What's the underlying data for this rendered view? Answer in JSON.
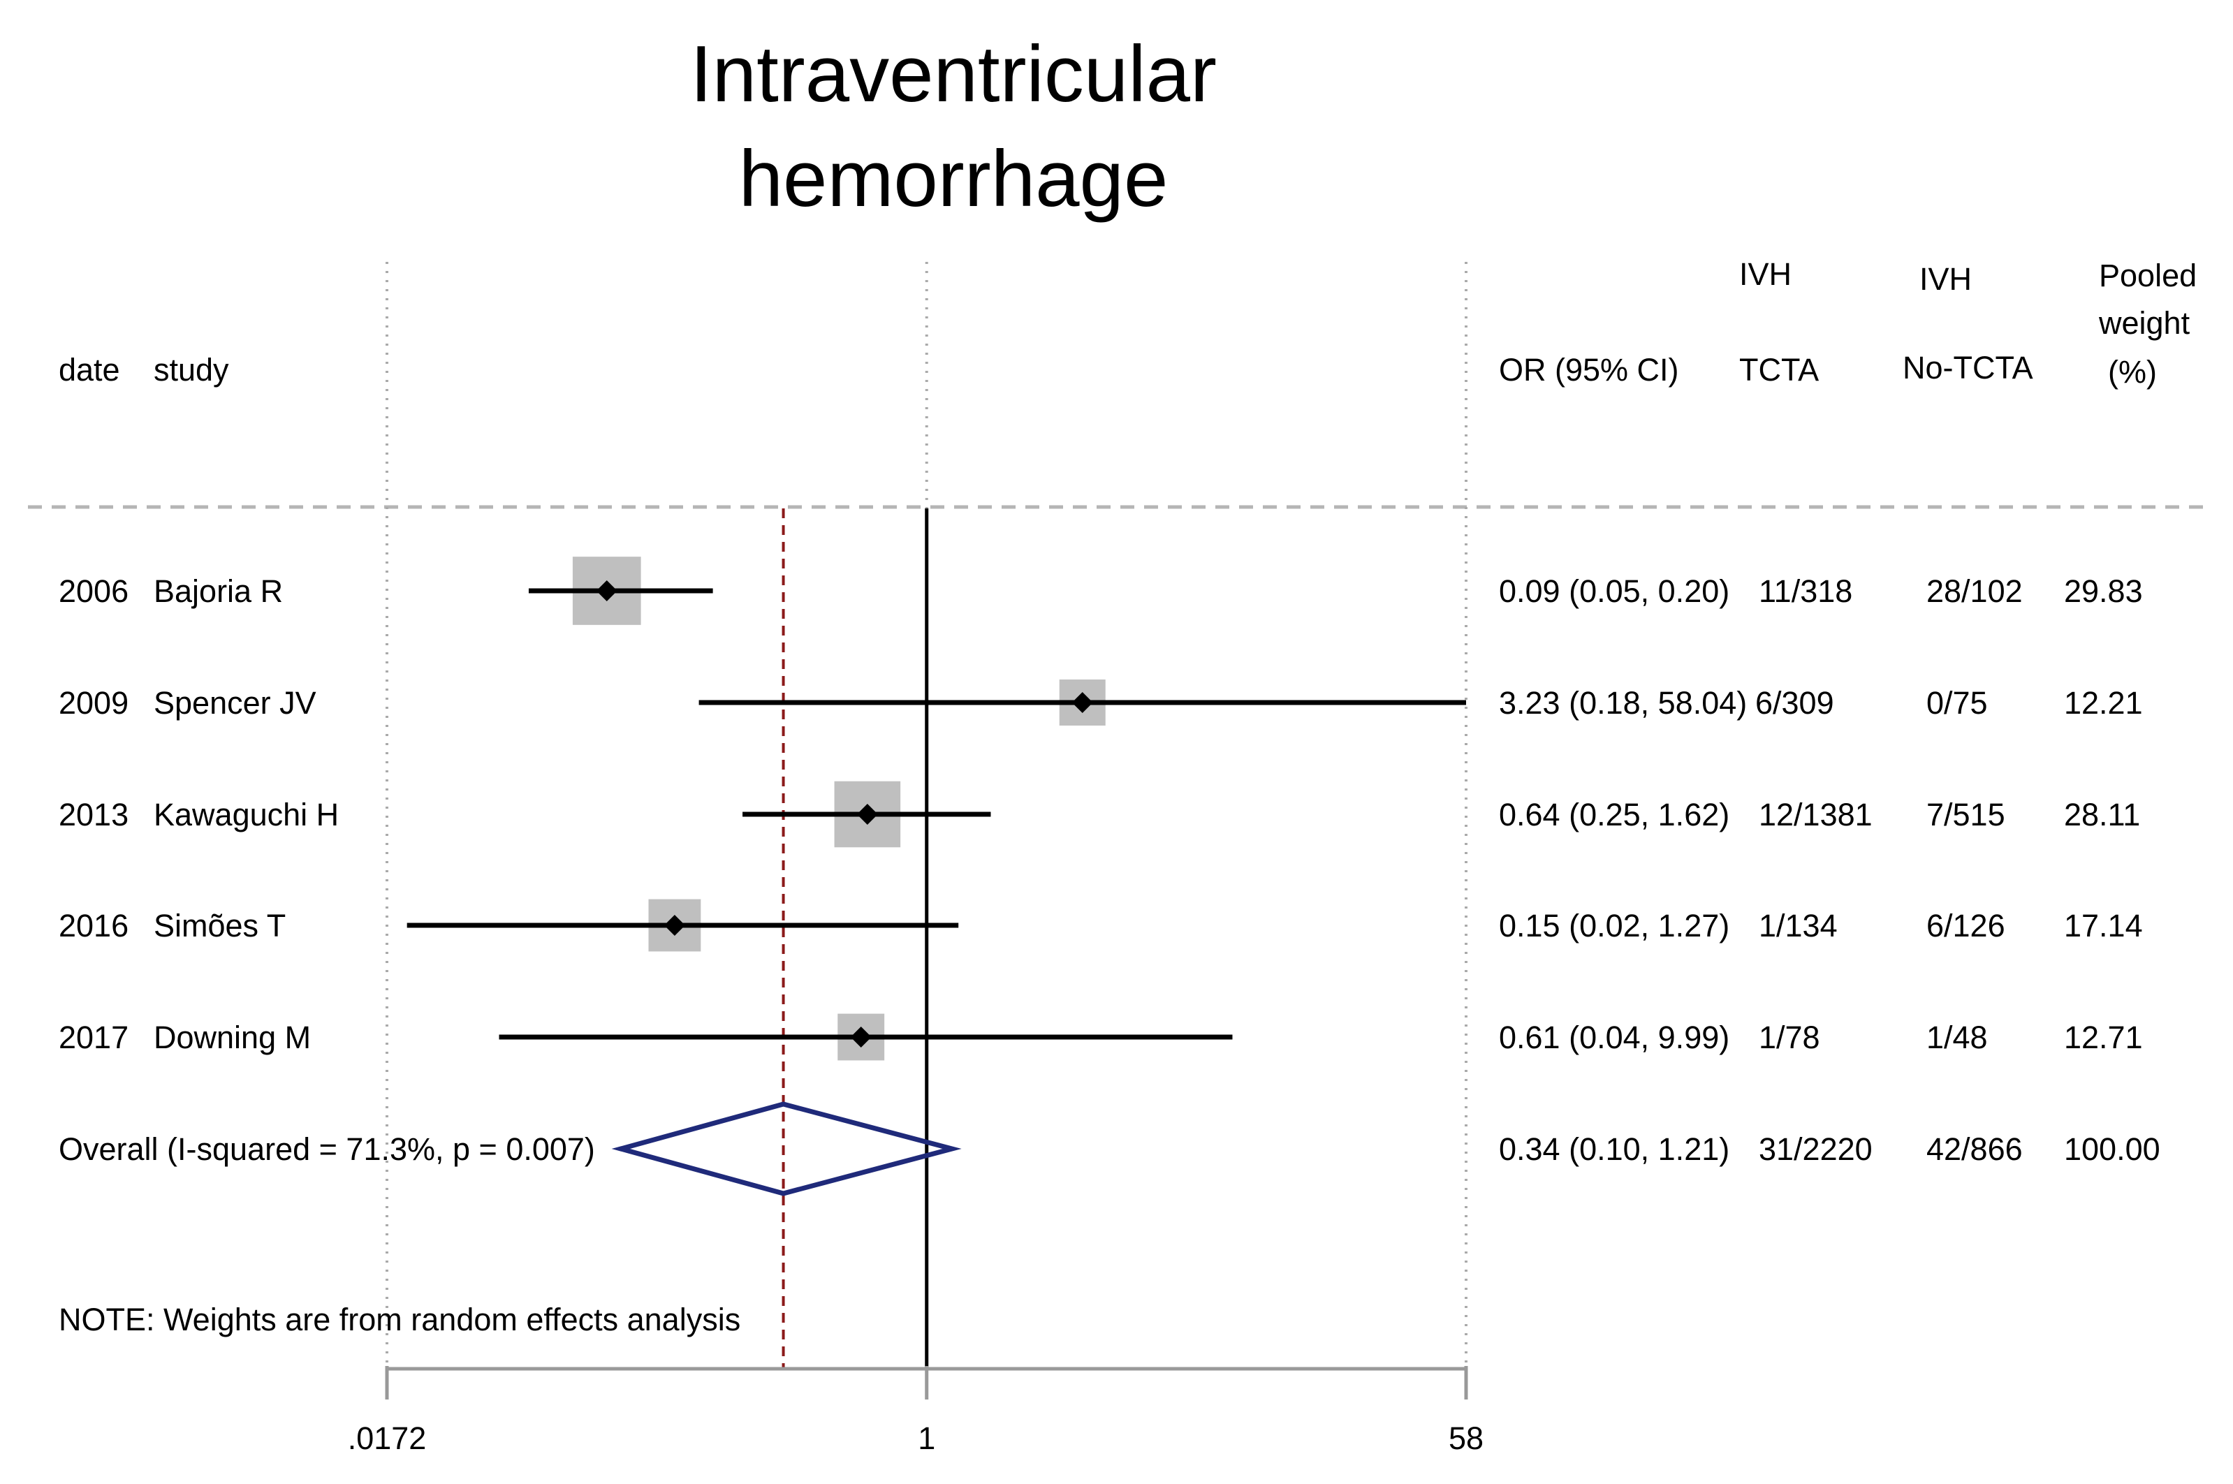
{
  "chart_data": {
    "type": "forest",
    "title": [
      "Intraventricular",
      "hemorrhage"
    ],
    "headers": {
      "date": "date",
      "study": "study",
      "or_ci": "OR (95% CI)",
      "tcta_top": "IVH",
      "tcta_bottom": "TCTA",
      "notcta_top": "IVH",
      "notcta_bottom": "No-TCTA",
      "weight_1": "Pooled",
      "weight_2": "weight",
      "weight_3": "(%)"
    },
    "scale": "log",
    "x_range": [
      0.0172,
      58
    ],
    "ticks": [
      {
        "value": 0.0172,
        "label": ".0172"
      },
      {
        "value": 1,
        "label": "1"
      },
      {
        "value": 58,
        "label": "58"
      }
    ],
    "null_line": 1,
    "pooled_line": 0.34,
    "studies": [
      {
        "date": "2006",
        "study": "Bajoria R",
        "or": 0.09,
        "lo": 0.05,
        "hi": 0.2,
        "or_text": "0.09 (0.05, 0.20)",
        "tcta": "11/318",
        "notcta": "28/102",
        "weight": 29.83,
        "weight_text": "29.83"
      },
      {
        "date": "2009",
        "study": "Spencer JV",
        "or": 3.23,
        "lo": 0.18,
        "hi": 58.04,
        "or_text": "3.23 (0.18, 58.04)",
        "tcta": "6/309",
        "notcta": "0/75",
        "weight": 12.21,
        "weight_text": "12.21"
      },
      {
        "date": "2013",
        "study": "Kawaguchi H",
        "or": 0.64,
        "lo": 0.25,
        "hi": 1.62,
        "or_text": "0.64 (0.25, 1.62)",
        "tcta": "12/1381",
        "notcta": "7/515",
        "weight": 28.11,
        "weight_text": "28.11"
      },
      {
        "date": "2016",
        "study": "Simões T",
        "or": 0.15,
        "lo": 0.02,
        "hi": 1.27,
        "or_text": "0.15 (0.02, 1.27)",
        "tcta": "1/134",
        "notcta": "6/126",
        "weight": 17.14,
        "weight_text": "17.14"
      },
      {
        "date": "2017",
        "study": "Downing M",
        "or": 0.61,
        "lo": 0.04,
        "hi": 9.99,
        "or_text": "0.61 (0.04, 9.99)",
        "tcta": "1/78",
        "notcta": "1/48",
        "weight": 12.71,
        "weight_text": "12.71"
      }
    ],
    "overall": {
      "label": "Overall  (I-squared = 71.3%, p = 0.007)",
      "or": 0.34,
      "lo": 0.1,
      "hi": 1.21,
      "or_text": "0.34 (0.10, 1.21)",
      "tcta": "31/2220",
      "notcta": "42/866",
      "weight_text": "100.00"
    },
    "note": "NOTE: Weights are from random effects analysis",
    "colors": {
      "diamond": "#1f2a7a",
      "pooled_line": "#8b1a1a",
      "box": "#bfbfbf",
      "grid": "#aaaaaa",
      "axis": "#999999"
    }
  }
}
